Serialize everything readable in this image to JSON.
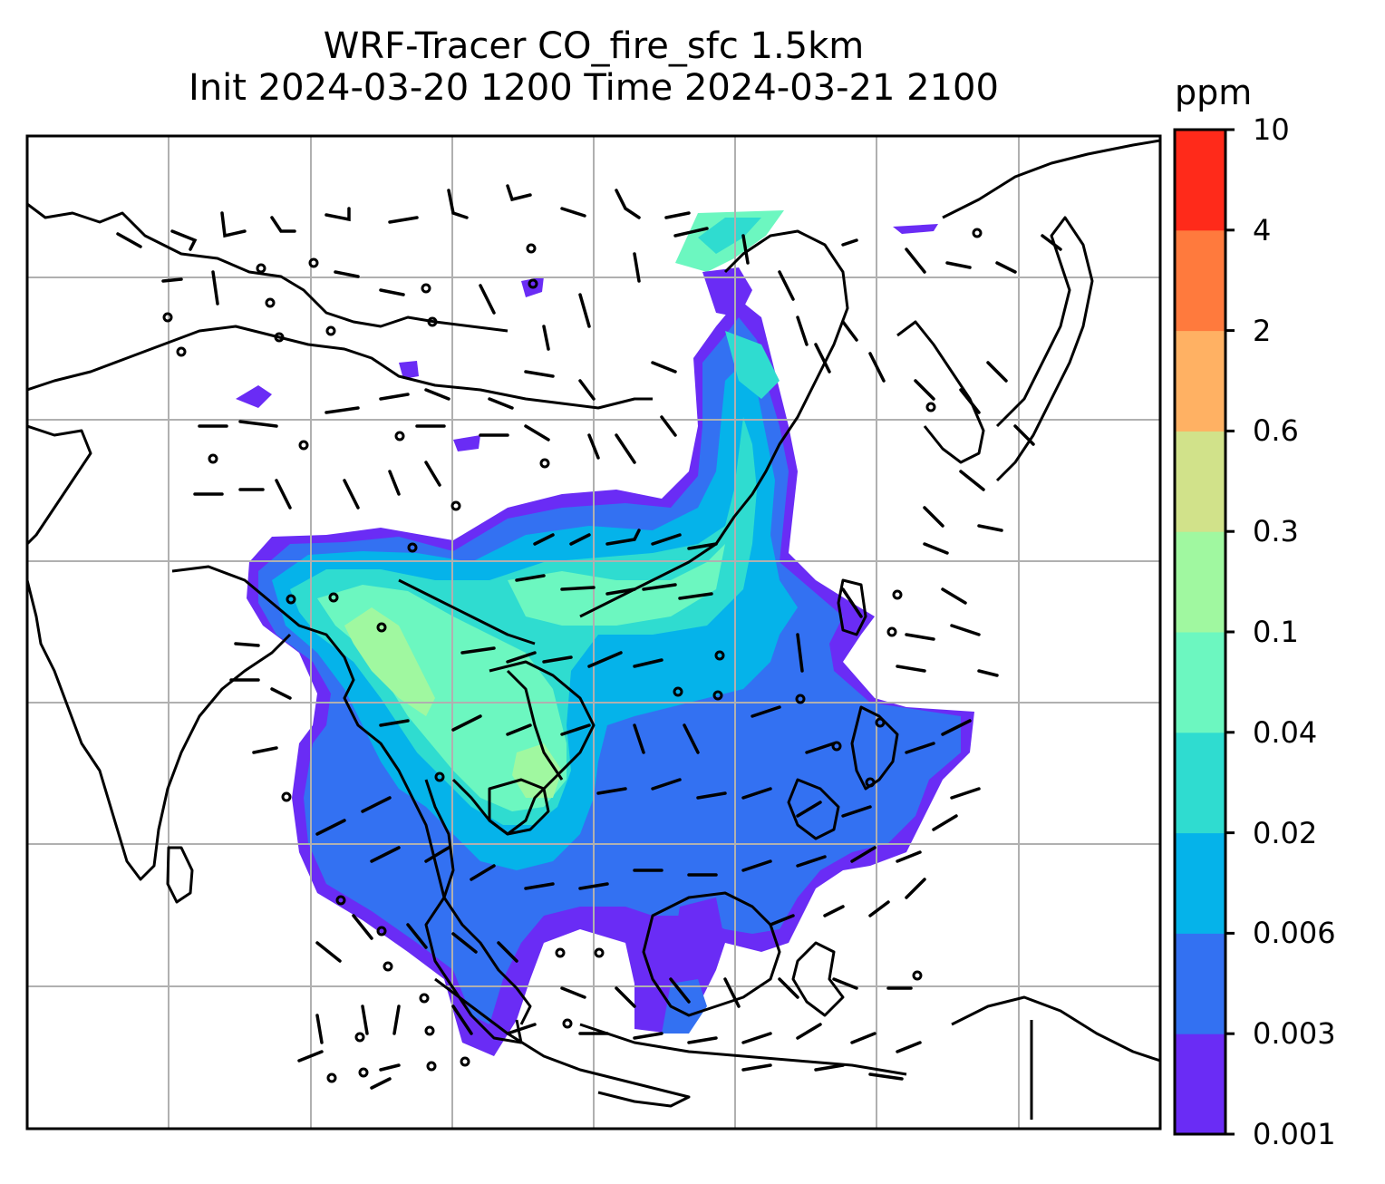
{
  "title": {
    "line1": "WRF-Tracer CO_fire_sfc 1.5km",
    "line2": "Init 2024-03-20 1200 Time 2024-03-21 2100"
  },
  "colorbar": {
    "unit": "ppm",
    "levels": [
      "0.001",
      "0.003",
      "0.006",
      "0.02",
      "0.04",
      "0.1",
      "0.3",
      "0.6",
      "2",
      "4",
      "10"
    ],
    "colors": [
      "#6a2cf5",
      "#3371f2",
      "#05b3ea",
      "#2fdcd0",
      "#6cf7c0",
      "#a0f8a0",
      "#d1e28a",
      "#ffb163",
      "#ff7a3d",
      "#ff2a1a"
    ]
  }
}
